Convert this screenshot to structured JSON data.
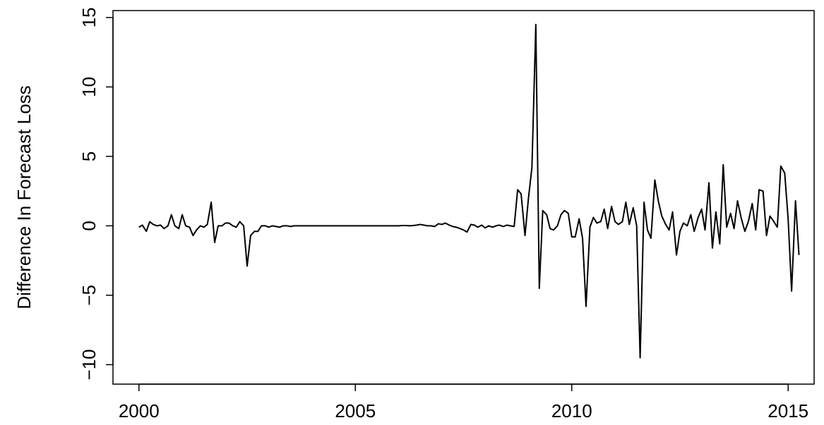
{
  "chart_data": {
    "type": "line",
    "y_label": "Difference In Forecast Loss",
    "color": "#000000",
    "xlim": [
      1999.4,
      2015.6
    ],
    "ylim": [
      -11.4,
      15.5
    ],
    "xticks": [
      2000,
      2005,
      2010,
      2015
    ],
    "yticks": [
      {
        "value": -10,
        "label": "−10"
      },
      {
        "value": -5,
        "label": "−5"
      },
      0,
      5,
      10,
      15
    ],
    "x": [
      2000,
      2000.08,
      2000.17,
      2000.25,
      2000.33,
      2000.42,
      2000.5,
      2000.58,
      2000.67,
      2000.75,
      2000.83,
      2000.92,
      2001,
      2001.08,
      2001.17,
      2001.25,
      2001.33,
      2001.42,
      2001.5,
      2001.58,
      2001.67,
      2001.75,
      2001.83,
      2001.92,
      2002,
      2002.08,
      2002.17,
      2002.25,
      2002.33,
      2002.42,
      2002.5,
      2002.58,
      2002.67,
      2002.75,
      2002.83,
      2002.92,
      2003,
      2003.08,
      2003.17,
      2003.25,
      2003.33,
      2003.42,
      2003.5,
      2003.58,
      2003.67,
      2003.75,
      2003.83,
      2003.92,
      2004,
      2004.08,
      2004.17,
      2004.25,
      2004.33,
      2004.42,
      2004.5,
      2004.58,
      2004.67,
      2004.75,
      2004.83,
      2004.92,
      2005,
      2005.08,
      2005.17,
      2005.25,
      2005.33,
      2005.42,
      2005.5,
      2005.58,
      2005.67,
      2005.75,
      2005.83,
      2005.92,
      2006,
      2006.08,
      2006.17,
      2006.25,
      2006.33,
      2006.42,
      2006.5,
      2006.58,
      2006.67,
      2006.75,
      2006.83,
      2006.92,
      2007,
      2007.08,
      2007.17,
      2007.25,
      2007.33,
      2007.42,
      2007.5,
      2007.58,
      2007.67,
      2007.75,
      2007.83,
      2007.92,
      2008,
      2008.08,
      2008.17,
      2008.25,
      2008.33,
      2008.42,
      2008.5,
      2008.58,
      2008.67,
      2008.75,
      2008.83,
      2008.92,
      2009,
      2009.08,
      2009.17,
      2009.25,
      2009.33,
      2009.42,
      2009.5,
      2009.58,
      2009.67,
      2009.75,
      2009.83,
      2009.92,
      2010,
      2010.08,
      2010.17,
      2010.25,
      2010.33,
      2010.42,
      2010.5,
      2010.58,
      2010.67,
      2010.75,
      2010.83,
      2010.92,
      2011,
      2011.08,
      2011.17,
      2011.25,
      2011.33,
      2011.42,
      2011.5,
      2011.58,
      2011.67,
      2011.75,
      2011.83,
      2011.92,
      2012,
      2012.08,
      2012.17,
      2012.25,
      2012.33,
      2012.42,
      2012.5,
      2012.58,
      2012.67,
      2012.75,
      2012.83,
      2012.92,
      2013,
      2013.08,
      2013.17,
      2013.25,
      2013.33,
      2013.42,
      2013.5,
      2013.58,
      2013.67,
      2013.75,
      2013.83,
      2013.92,
      2014,
      2014.08,
      2014.17,
      2014.25,
      2014.33,
      2014.42,
      2014.5,
      2014.58,
      2014.67,
      2014.75,
      2014.83,
      2014.92,
      2015,
      2015.08,
      2015.17,
      2015.25
    ],
    "values": [
      -0.1,
      0.05,
      -0.4,
      0.3,
      0.1,
      0.0,
      0.05,
      -0.2,
      0.0,
      0.8,
      0.0,
      -0.2,
      0.8,
      0.0,
      -0.1,
      -0.7,
      -0.3,
      0.0,
      -0.1,
      0.1,
      1.7,
      -1.2,
      0.0,
      0.0,
      0.2,
      0.2,
      0.0,
      -0.1,
      0.3,
      0.0,
      -2.9,
      -0.7,
      -0.4,
      -0.4,
      0.0,
      0.0,
      -0.1,
      0.0,
      -0.05,
      -0.1,
      0.0,
      0.0,
      -0.05,
      0.0,
      0.0,
      0.0,
      0.0,
      0.0,
      0,
      0,
      0,
      0,
      0,
      0,
      0,
      0,
      0,
      0,
      0,
      0,
      0,
      0,
      0,
      0,
      0,
      0,
      0,
      0,
      0,
      0,
      0,
      0,
      0,
      0.02,
      0.02,
      0,
      0.02,
      0.05,
      0.1,
      0.05,
      0.0,
      0.0,
      -0.05,
      0.15,
      0.1,
      0.2,
      0.05,
      -0.05,
      -0.1,
      -0.2,
      -0.3,
      -0.45,
      0.1,
      0.05,
      -0.1,
      0.05,
      -0.15,
      0.0,
      -0.1,
      0.0,
      0.05,
      -0.05,
      0.05,
      0.0,
      -0.05,
      2.6,
      2.3,
      -0.7,
      2.0,
      4.2,
      14.5,
      -4.5,
      1.1,
      0.8,
      -0.2,
      -0.3,
      0.0,
      0.8,
      1.1,
      0.9,
      -0.8,
      -0.8,
      0.5,
      -0.9,
      -5.8,
      -0.1,
      0.6,
      0.2,
      0.3,
      1.2,
      -0.2,
      1.4,
      0.3,
      0.1,
      0.3,
      1.7,
      0.1,
      1.3,
      0.0,
      -9.5,
      1.7,
      -0.3,
      -0.9,
      3.3,
      1.8,
      0.7,
      0.1,
      -0.3,
      1.0,
      -2.1,
      -0.4,
      0.2,
      0.0,
      0.8,
      -0.4,
      0.6,
      1.2,
      -0.3,
      3.1,
      -1.6,
      1.0,
      -1.3,
      4.4,
      -0.1,
      0.9,
      -0.2,
      1.8,
      0.5,
      -0.4,
      0.3,
      1.6,
      -0.3,
      2.6,
      2.5,
      -0.7,
      0.7,
      0.3,
      -0.1,
      4.3,
      3.8,
      0.5,
      -4.7,
      1.8,
      -2.1
    ]
  }
}
